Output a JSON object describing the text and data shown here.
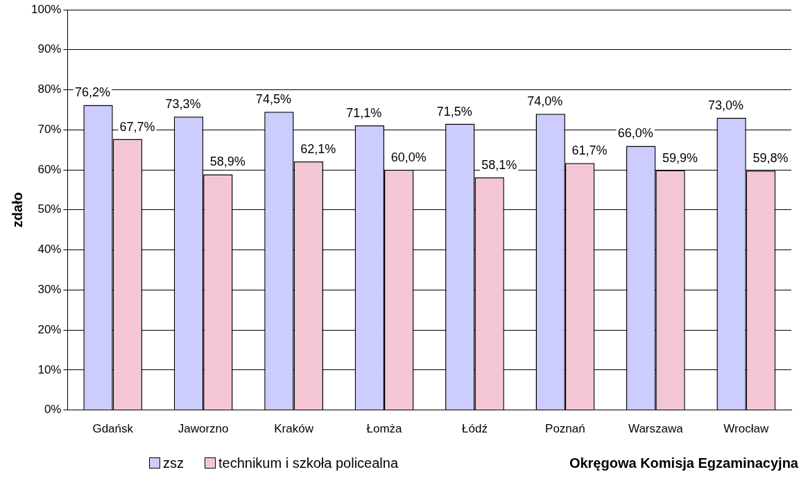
{
  "chart_data": {
    "type": "bar",
    "ylabel": "zdało",
    "xlabel": "Okręgowa Komisja Egzaminacyjna",
    "categories": [
      "Gdańsk",
      "Jaworzno",
      "Kraków",
      "Łomża",
      "Łódź",
      "Poznań",
      "Warszawa",
      "Wrocław"
    ],
    "series": [
      {
        "name": "zsz",
        "color": "#ccccff",
        "values": [
          76.2,
          73.3,
          74.5,
          71.1,
          71.5,
          74.0,
          66.0,
          73.0
        ],
        "value_labels": [
          "76,2%",
          "73,3%",
          "74,5%",
          "71,1%",
          "71,5%",
          "74,0%",
          "66,0%",
          "73,0%"
        ]
      },
      {
        "name": "technikum i szkoła policealna",
        "color": "#f4c6d4",
        "values": [
          67.7,
          58.9,
          62.1,
          60.0,
          58.1,
          61.7,
          59.9,
          59.8
        ],
        "value_labels": [
          "67,7%",
          "58,9%",
          "62,1%",
          "60,0%",
          "58,1%",
          "61,7%",
          "59,9%",
          "59,8%"
        ]
      }
    ],
    "ylim": [
      0,
      100
    ],
    "yticks": [
      {
        "value": 0,
        "label": "0%"
      },
      {
        "value": 10,
        "label": "10%"
      },
      {
        "value": 20,
        "label": "20%"
      },
      {
        "value": 30,
        "label": "30%"
      },
      {
        "value": 40,
        "label": "40%"
      },
      {
        "value": 50,
        "label": "50%"
      },
      {
        "value": 60,
        "label": "60%"
      },
      {
        "value": 70,
        "label": "70%"
      },
      {
        "value": 80,
        "label": "80%"
      },
      {
        "value": 90,
        "label": "90%"
      },
      {
        "value": 100,
        "label": "100%"
      }
    ],
    "grid": "y",
    "legend": "bottom left"
  }
}
